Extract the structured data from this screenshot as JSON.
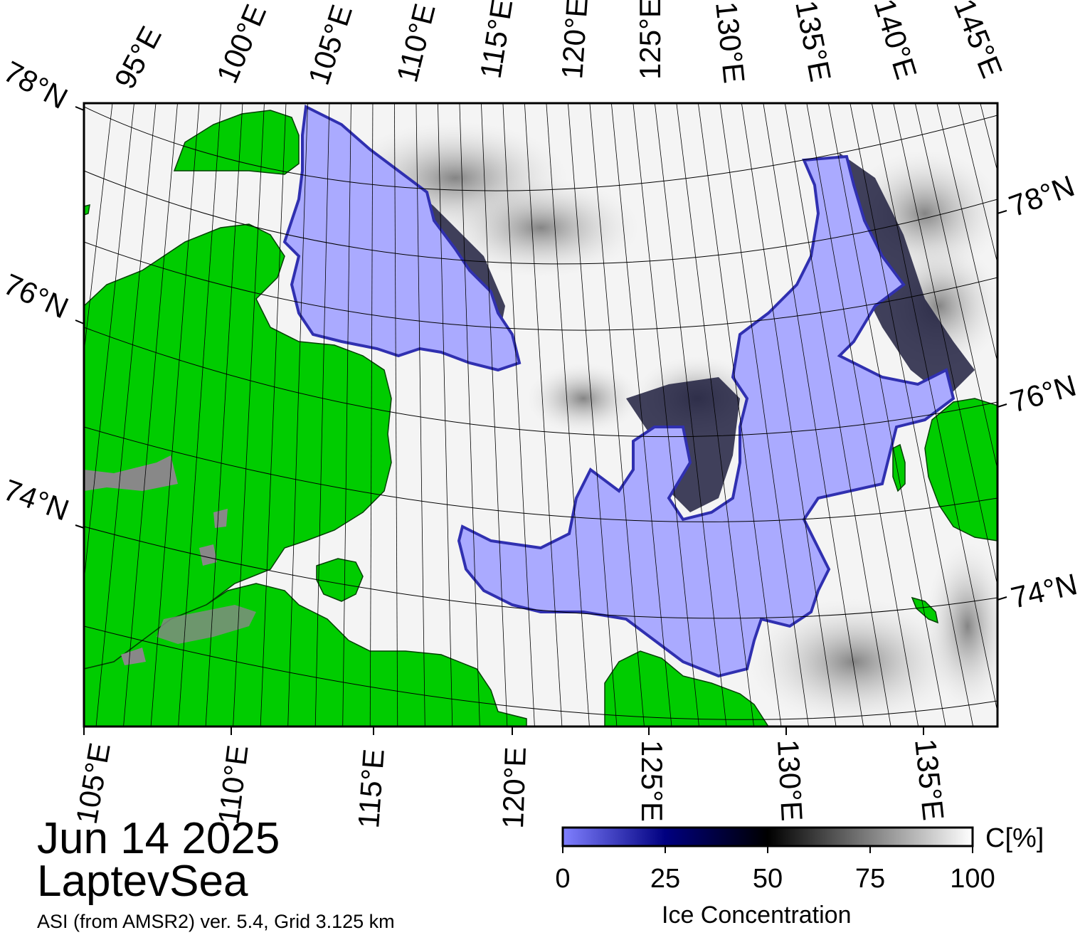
{
  "map": {
    "date": "Jun 14 2025",
    "region": "LaptevSea",
    "source": "ASI (from AMSR2) ver. 5.4,  Grid 3.125 km",
    "top_longitude_labels": [
      "95°E",
      "100°E",
      "105°E",
      "110°E",
      "115°E",
      "120°E",
      "125°E",
      "130°E",
      "135°E",
      "140°E",
      "145°E"
    ],
    "bottom_longitude_labels": [
      "105°E",
      "110°E",
      "115°E",
      "120°E",
      "125°E",
      "130°E",
      "135°E"
    ],
    "left_latitude_labels": [
      "78°N",
      "76°N",
      "74°N"
    ],
    "right_latitude_labels": [
      "78°N",
      "76°N",
      "74°N"
    ],
    "colors": {
      "land": "#00cc00",
      "land_ice": "#888888",
      "open_water_ice_0": "#aaaaff",
      "ice_25": "#000080",
      "ice_50": "#000000",
      "ice_100": "#ffffff"
    }
  },
  "colorbar": {
    "title": "Ice Concentration",
    "unit": "C[%]",
    "ticks": [
      "0",
      "25",
      "50",
      "75",
      "100"
    ],
    "range": [
      0,
      100
    ]
  }
}
